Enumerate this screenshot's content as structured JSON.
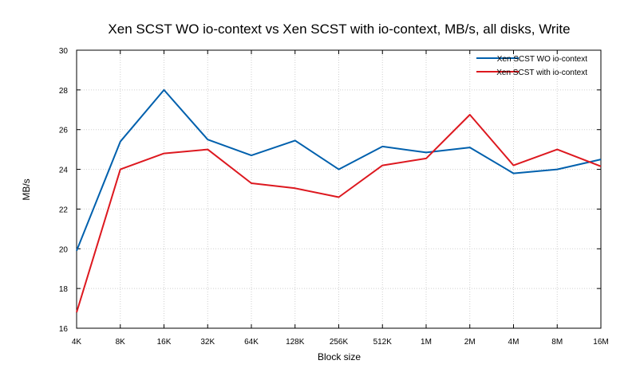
{
  "chart_data": {
    "type": "line",
    "title": "Xen SCST WO io-context vs Xen SCST with io-context, MB/s, all disks, Write",
    "xlabel": "Block size",
    "ylabel": "MB/s",
    "categories": [
      "4K",
      "8K",
      "16K",
      "32K",
      "64K",
      "128K",
      "256K",
      "512K",
      "1M",
      "2M",
      "4M",
      "8M",
      "16M"
    ],
    "ylim": [
      16,
      30
    ],
    "yticks": [
      16,
      18,
      20,
      22,
      24,
      26,
      28,
      30
    ],
    "grid": true,
    "legend_position": "top-right",
    "series": [
      {
        "name": "Xen SCST WO io-context",
        "color": "#0060ad",
        "values": [
          19.9,
          25.4,
          28.0,
          25.5,
          24.7,
          25.45,
          24.0,
          25.15,
          24.85,
          25.1,
          23.8,
          24.0,
          24.5
        ]
      },
      {
        "name": "Xen SCST with io-context",
        "color": "#dd181f",
        "values": [
          16.8,
          24.0,
          24.8,
          25.0,
          23.3,
          23.05,
          22.6,
          24.2,
          24.55,
          26.75,
          24.2,
          25.0,
          24.15
        ]
      }
    ]
  }
}
